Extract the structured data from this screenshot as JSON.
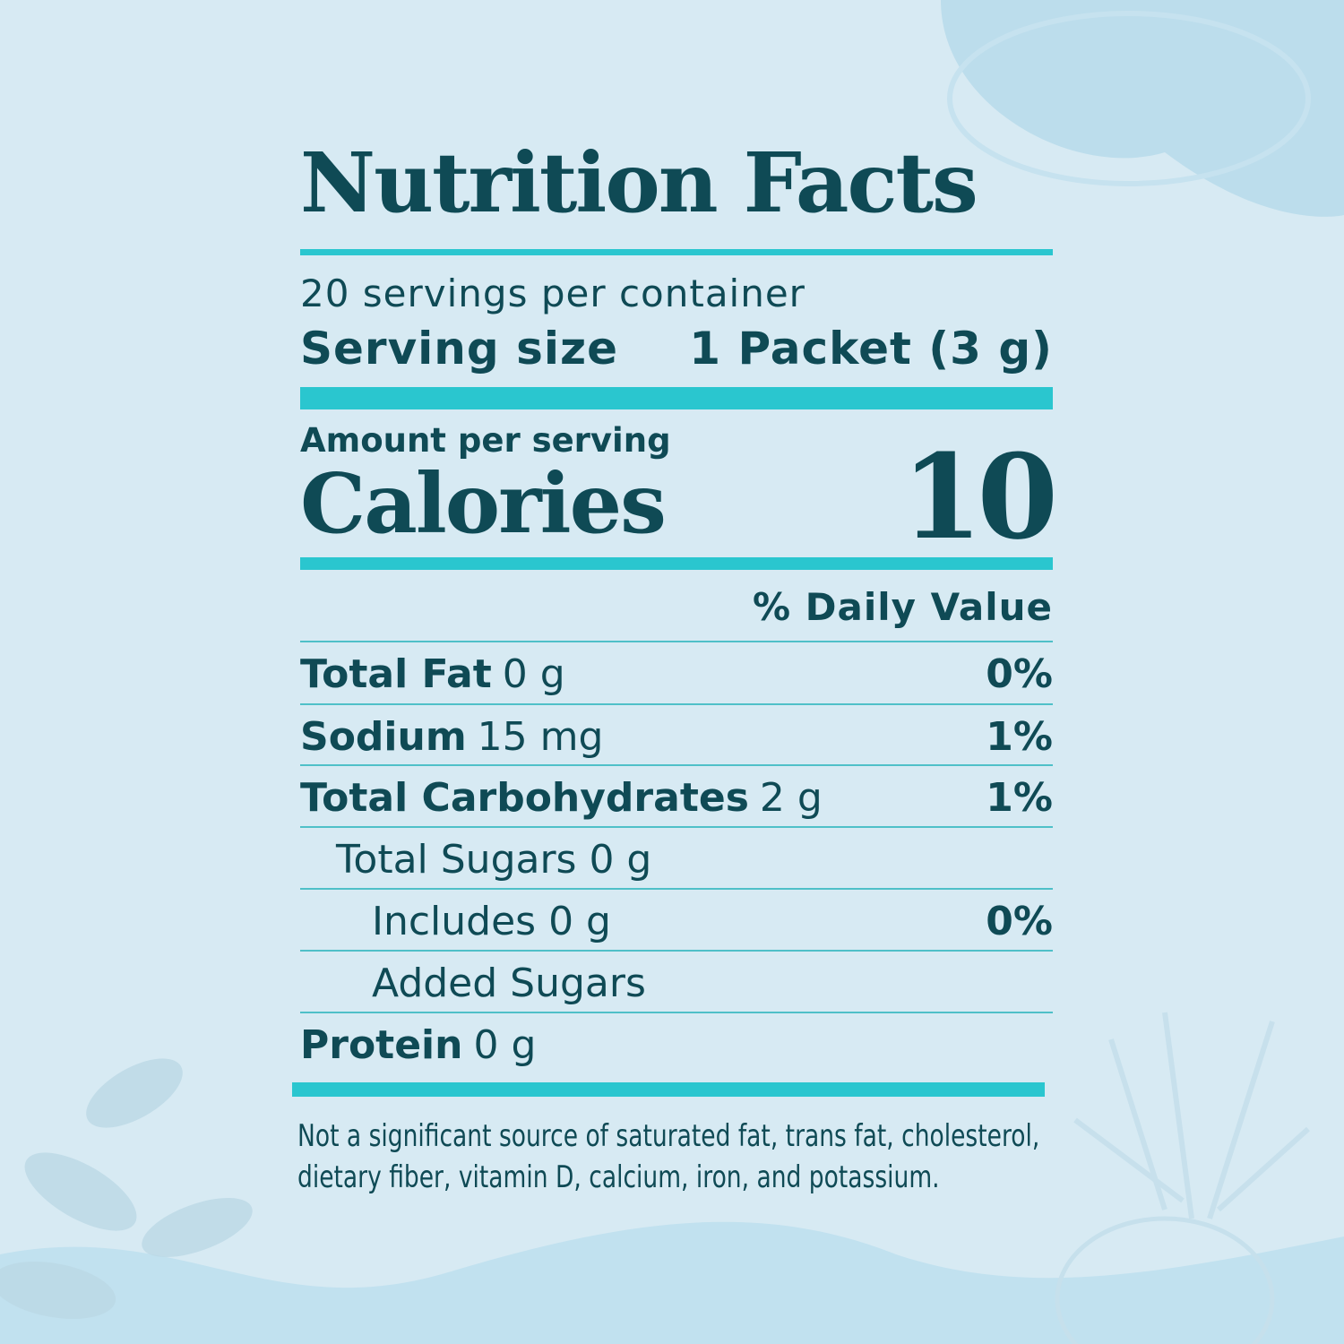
{
  "label": {
    "title": "Nutrition Facts",
    "servings_per_container": "20 servings per container",
    "serving_size_label": "Serving size",
    "serving_size_value": "1 Packet (3 g)",
    "amount_per_serving": "Amount per serving",
    "calories_label": "Calories",
    "calories_value": "10",
    "daily_value_header": "% Daily Value",
    "rows": [
      {
        "name": "Total Fat",
        "amount": "0 g",
        "dv": "0%"
      },
      {
        "name": "Sodium",
        "amount": "15 mg",
        "dv": "1%"
      },
      {
        "name": "Total Carbohydrates",
        "amount": "2 g",
        "dv": "1%"
      },
      {
        "name": "Total Sugars 0 g",
        "amount": "",
        "dv": ""
      },
      {
        "name": "Includes 0 g",
        "amount": "",
        "dv": "0%"
      },
      {
        "name": "Added Sugars",
        "amount": "",
        "dv": ""
      },
      {
        "name": "Protein",
        "amount": "0 g",
        "dv": ""
      }
    ],
    "footnote_line1": "Not a significant source of saturated fat, trans fat, cholesterol,",
    "footnote_line2": "dietary fiber, vitamin D, calcium, iron, and potassium."
  },
  "colors": {
    "background": "#d7eaf3",
    "text": "#0f4a55",
    "accent": "#2ac6cf"
  }
}
